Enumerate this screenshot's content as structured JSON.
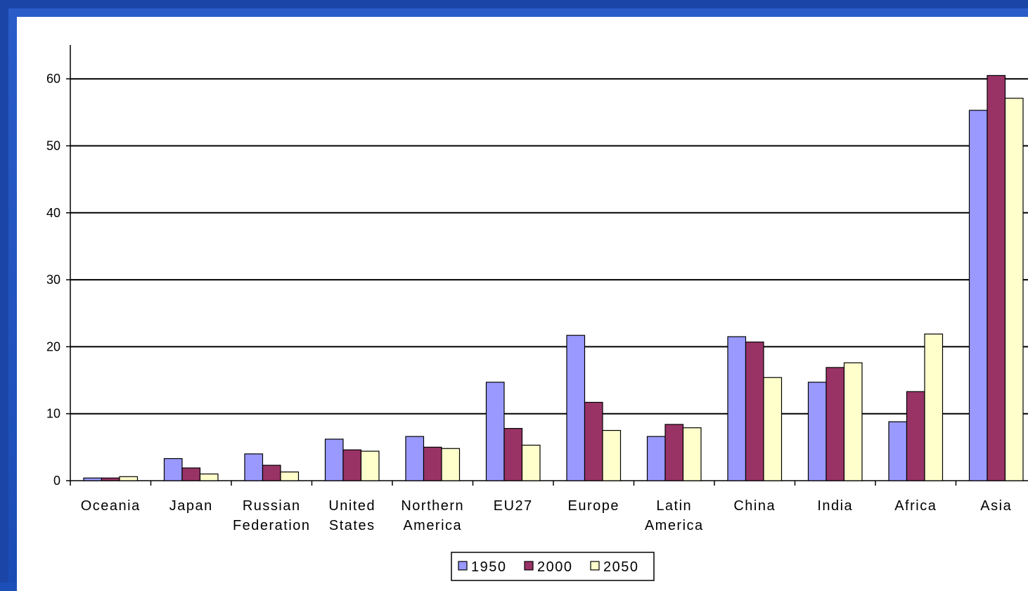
{
  "chart_data": {
    "type": "bar",
    "categories": [
      [
        "Oceania"
      ],
      [
        "Japan"
      ],
      [
        "Russian",
        "Federation"
      ],
      [
        "United",
        "States"
      ],
      [
        "Northern",
        "America"
      ],
      [
        "EU27"
      ],
      [
        "Europe"
      ],
      [
        "Latin",
        "America"
      ],
      [
        "China"
      ],
      [
        "India"
      ],
      [
        "Africa"
      ],
      [
        "Asia"
      ]
    ],
    "series": [
      {
        "name": "1950",
        "color": "#9999ff",
        "values": [
          0.4,
          3.3,
          4.0,
          6.2,
          6.6,
          14.7,
          21.7,
          6.6,
          21.5,
          14.7,
          8.8,
          55.3
        ]
      },
      {
        "name": "2000",
        "color": "#993366",
        "values": [
          0.4,
          1.9,
          2.3,
          4.6,
          5.0,
          7.8,
          11.7,
          8.4,
          20.7,
          16.9,
          13.3,
          60.5
        ]
      },
      {
        "name": "2050",
        "color": "#ffffcc",
        "values": [
          0.6,
          1.0,
          1.3,
          4.4,
          4.8,
          5.3,
          7.5,
          7.9,
          15.4,
          17.6,
          21.9,
          57.1
        ]
      }
    ],
    "ylim": [
      0,
      60
    ],
    "yticks": [
      0,
      10,
      20,
      30,
      40,
      50,
      60
    ],
    "title": "",
    "xlabel": "",
    "ylabel": "",
    "grid": true,
    "legend_position": "bottom-center"
  }
}
